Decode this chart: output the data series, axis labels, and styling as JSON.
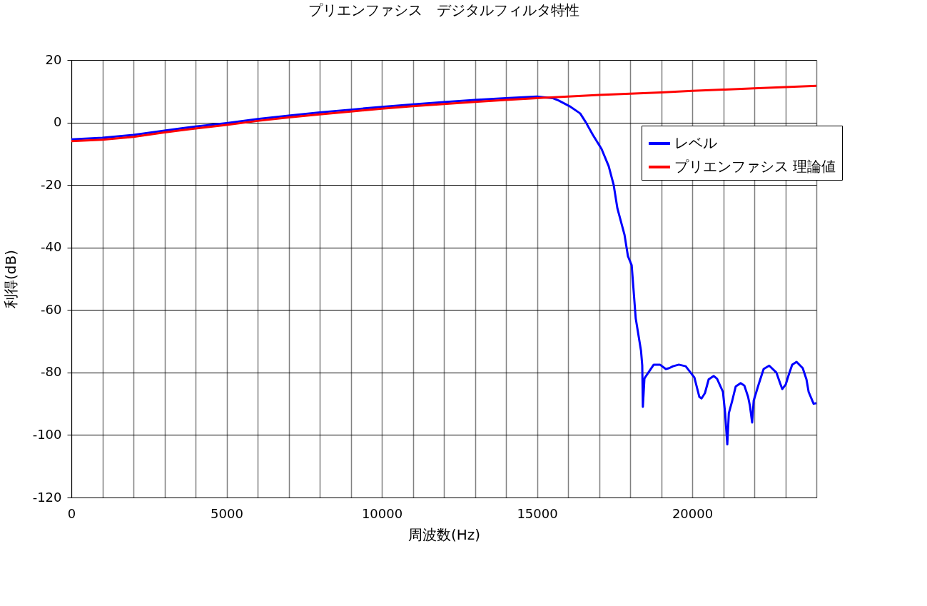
{
  "chart_data": {
    "type": "line",
    "title": "プリエンファシス　デジタルフィルタ特性",
    "xlabel": "周波数(Hz)",
    "ylabel": "利得(dB)",
    "xlim": [
      0,
      24000
    ],
    "ylim": [
      -120,
      20
    ],
    "xticks": [
      0,
      {
        "value": 1000,
        "label": null
      },
      {
        "value": 2000,
        "label": null
      },
      {
        "value": 3000,
        "label": null
      },
      {
        "value": 4000,
        "label": null
      },
      5000,
      {
        "value": 6000,
        "label": null
      },
      {
        "value": 7000,
        "label": null
      },
      {
        "value": 8000,
        "label": null
      },
      {
        "value": 9000,
        "label": null
      },
      10000,
      {
        "value": 11000,
        "label": null
      },
      {
        "value": 12000,
        "label": null
      },
      {
        "value": 13000,
        "label": null
      },
      {
        "value": 14000,
        "label": null
      },
      15000,
      {
        "value": 16000,
        "label": null
      },
      {
        "value": 17000,
        "label": null
      },
      {
        "value": 18000,
        "label": null
      },
      {
        "value": 19000,
        "label": null
      },
      20000,
      {
        "value": 21000,
        "label": null
      },
      {
        "value": 22000,
        "label": null
      },
      {
        "value": 23000,
        "label": null
      },
      {
        "value": 24000,
        "label": null
      }
    ],
    "yticks": [
      -120,
      -100,
      -80,
      -60,
      -40,
      -20,
      0,
      20
    ],
    "grid": true,
    "legend": "top right",
    "line_style": "solid",
    "marker": "none",
    "series": [
      {
        "name": "レベル",
        "color": "#0000ff",
        "x": [
          0,
          1000,
          2000,
          3000,
          4000,
          5000,
          6000,
          7000,
          8000,
          9000,
          10000,
          11000,
          12000,
          13000,
          14000,
          15000,
          15500,
          15700,
          16050,
          16390,
          16570,
          16800,
          17080,
          17310,
          17470,
          17590,
          17820,
          17930,
          18050,
          18180,
          18350,
          18390,
          18410,
          18460,
          18480,
          18760,
          18960,
          19150,
          19260,
          19380,
          19570,
          19790,
          20070,
          20230,
          20300,
          20410,
          20530,
          20690,
          20800,
          20990,
          21060,
          21130,
          21180,
          21290,
          21400,
          21560,
          21680,
          21800,
          21860,
          21930,
          21980,
          22140,
          22300,
          22480,
          22710,
          22830,
          22900,
          23010,
          23100,
          23220,
          23360,
          23560,
          23680,
          23750,
          23910,
          24000
        ],
        "values": [
          -5.4,
          -4.9,
          -4,
          -2.6,
          -1.3,
          -0.2,
          1.1,
          2.2,
          3.2,
          4.1,
          5,
          5.8,
          6.5,
          7.2,
          7.8,
          8.3,
          7.8,
          7,
          5.2,
          2.9,
          0.1,
          -4,
          -8.5,
          -14,
          -20,
          -27.5,
          -36,
          -42.8,
          -45.7,
          -62.7,
          -73,
          -77.7,
          -91,
          -82,
          -81.6,
          -77.5,
          -77.5,
          -78.9,
          -78.6,
          -78,
          -77.5,
          -78,
          -81.6,
          -87.8,
          -88.3,
          -86.6,
          -82.2,
          -81.1,
          -82,
          -86.2,
          -93,
          -103,
          -93,
          -89,
          -84.5,
          -83.4,
          -84.2,
          -87.8,
          -90.7,
          -96,
          -89,
          -83.8,
          -78.9,
          -77.8,
          -80,
          -83.4,
          -85.3,
          -83.9,
          -81,
          -77.5,
          -76.6,
          -78.6,
          -82.2,
          -86.2,
          -90,
          -89.8
        ]
      },
      {
        "name": "プリエンファシス 理論値",
        "color": "#ff0000",
        "x": [
          0,
          1000,
          2000,
          3000,
          4000,
          5000,
          6000,
          7000,
          8000,
          9000,
          10000,
          11000,
          12000,
          13000,
          14000,
          15000,
          16000,
          17000,
          18000,
          19000,
          20000,
          21000,
          22000,
          23000,
          24000
        ],
        "values": [
          -6,
          -5.5,
          -4.6,
          -3.2,
          -1.9,
          -0.8,
          0.5,
          1.6,
          2.6,
          3.5,
          4.4,
          5.2,
          5.9,
          6.6,
          7.2,
          7.8,
          8.3,
          8.8,
          9.2,
          9.6,
          10.1,
          10.5,
          10.9,
          11.3,
          11.7
        ]
      }
    ]
  }
}
